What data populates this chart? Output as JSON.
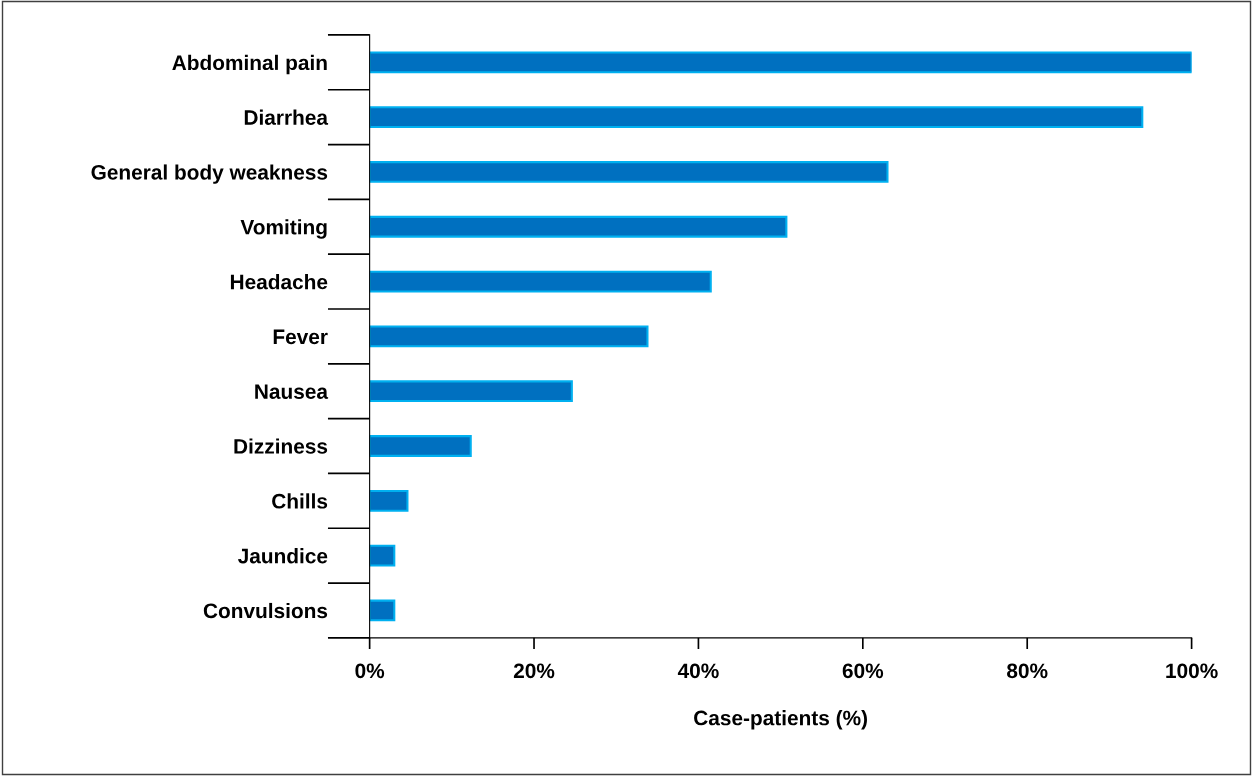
{
  "chart_data": {
    "type": "bar",
    "orientation": "horizontal",
    "xlabel": "Case-patients (%)",
    "categories": [
      "Abdominal pain",
      "Diarrhea",
      "General body weakness",
      "Vomiting",
      "Headache",
      "Fever",
      "Nausea",
      "Dizziness",
      "Chills",
      "Jaundice",
      "Convulsions"
    ],
    "values": [
      100,
      94,
      63,
      50.7,
      41.5,
      33.8,
      24.6,
      12.3,
      4.6,
      3,
      3
    ],
    "color": "#0070c0",
    "xlim": [
      0,
      100
    ],
    "xticks": [
      {
        "value": 0,
        "label": "0%"
      },
      {
        "value": 20,
        "label": "20%"
      },
      {
        "value": 40,
        "label": "40%"
      },
      {
        "value": 60,
        "label": "60%"
      },
      {
        "value": 80,
        "label": "80%"
      },
      {
        "value": 100,
        "label": "100%"
      }
    ],
    "grid": false
  }
}
